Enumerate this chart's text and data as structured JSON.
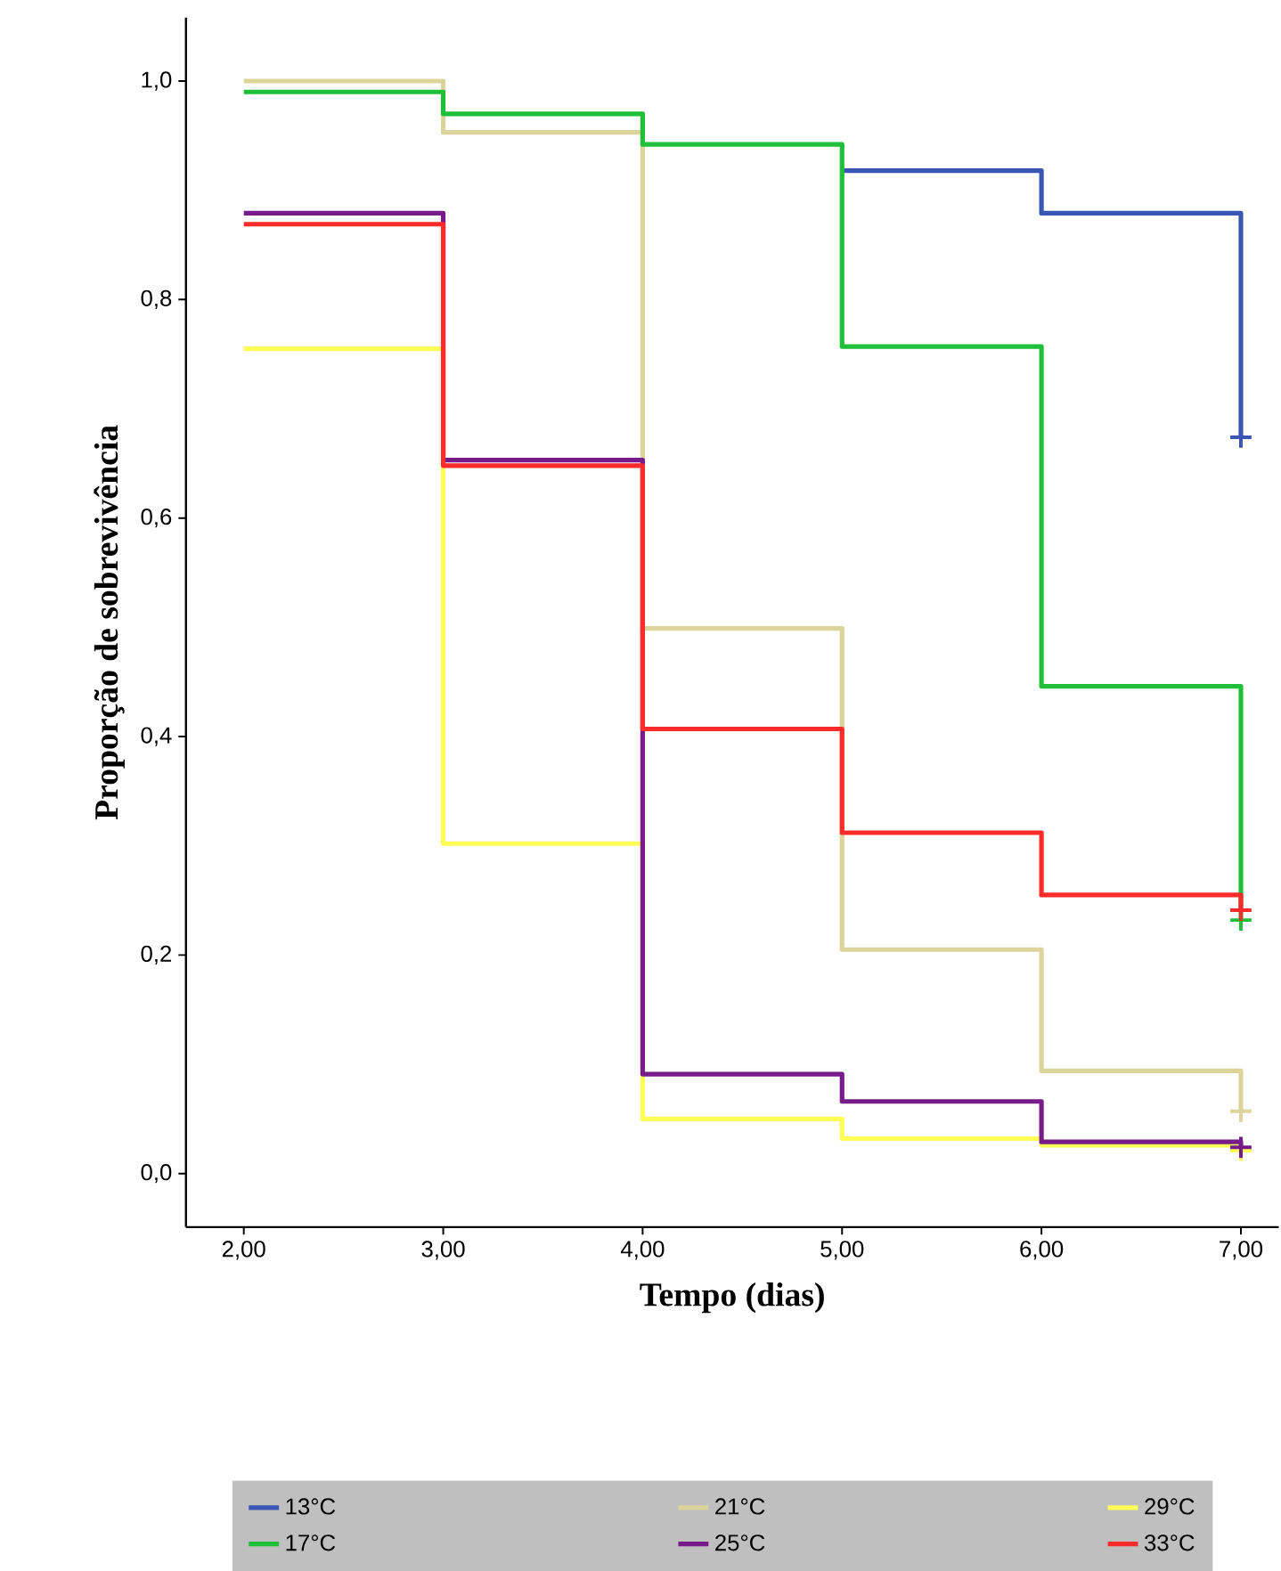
{
  "chart_data": {
    "type": "step",
    "xlabel": "Tempo (dias)",
    "ylabel": "Proporção de sobrevivência",
    "xlim": [
      1.71,
      7.19
    ],
    "ylim": [
      -0.049,
      1.058
    ],
    "xticks": [
      {
        "value": 2,
        "label": "2,00"
      },
      {
        "value": 3,
        "label": "3,00"
      },
      {
        "value": 4,
        "label": "4,00"
      },
      {
        "value": 5,
        "label": "5,00"
      },
      {
        "value": 6,
        "label": "6,00"
      },
      {
        "value": 7,
        "label": "7,00"
      }
    ],
    "yticks": [
      {
        "value": 0,
        "label": "0,0"
      },
      {
        "value": 0.2,
        "label": "0,2"
      },
      {
        "value": 0.4,
        "label": "0,4"
      },
      {
        "value": 0.6,
        "label": "0,6"
      },
      {
        "value": 0.8,
        "label": "0,8"
      },
      {
        "value": 1.0,
        "label": "1,0"
      }
    ],
    "legend": "bottom",
    "grid": false,
    "line_style": "solid",
    "series": [
      {
        "name": "13°C",
        "color": "#3a55b4",
        "x": [
          5,
          6,
          7
        ],
        "values": [
          0.918,
          0.879,
          0.674
        ]
      },
      {
        "name": "21°C",
        "color": "#dcd49a",
        "x": [
          2,
          3,
          4,
          5,
          6,
          7
        ],
        "values": [
          1.0,
          0.953,
          0.499,
          0.205,
          0.094,
          0.057
        ]
      },
      {
        "name": "29°C",
        "color": "#ffff55",
        "x": [
          2,
          3,
          4,
          5,
          6,
          7
        ],
        "values": [
          0.755,
          0.302,
          0.05,
          0.032,
          0.026,
          0.021
        ]
      },
      {
        "name": "17°C",
        "color": "#1fbf3a",
        "x": [
          2,
          3,
          4,
          5,
          6,
          7
        ],
        "values": [
          0.99,
          0.97,
          0.942,
          0.757,
          0.446,
          0.232
        ]
      },
      {
        "name": "25°C",
        "color": "#771a8a",
        "x": [
          2,
          3,
          4,
          5,
          6,
          7
        ],
        "values": [
          0.879,
          0.653,
          0.091,
          0.066,
          0.029,
          0.024
        ]
      },
      {
        "name": "33°C",
        "color": "#ff2a2a",
        "x": [
          2,
          3,
          4,
          5,
          6,
          7
        ],
        "values": [
          0.869,
          0.648,
          0.407,
          0.312,
          0.255,
          0.241
        ]
      },
      {
        "type": "scatter",
        "marker": "cross",
        "x": [
          7,
          7,
          7,
          7,
          7,
          7
        ],
        "values": [
          0.674,
          0.057,
          0.021,
          0.232,
          0.024,
          0.241
        ],
        "colors": [
          "#3a55b4",
          "#dcd49a",
          "#ffff55",
          "#1fbf3a",
          "#771a8a",
          "#ff2a2a"
        ]
      }
    ]
  }
}
